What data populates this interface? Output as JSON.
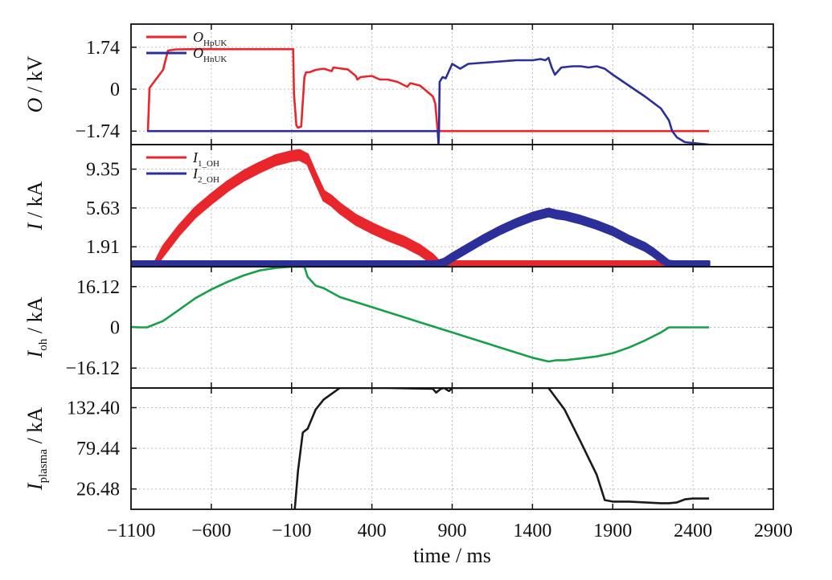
{
  "chart_data": {
    "type": "line",
    "xlabel": "time / ms",
    "xlim": [
      -1100,
      2900
    ],
    "xticks": [
      "-1100",
      "-600",
      "-100",
      "400",
      "900",
      "1400",
      "1900",
      "2400",
      "2900"
    ],
    "grid": true,
    "panels": [
      {
        "ylabel_main": "O",
        "ylabel_unit": " / kV",
        "ylim": [
          -2.3,
          2.7
        ],
        "yticks": [
          {
            "v": 1.74,
            "label": "1.74"
          },
          {
            "v": 0,
            "label": "0"
          },
          {
            "v": -1.74,
            "label": "−1.74"
          }
        ],
        "legend_position": "top-left",
        "series": [
          {
            "name": "O_HpUK",
            "name_main": "O",
            "name_sub": "HpUK",
            "color": "#e8262b",
            "points": [
              [
                -1000,
                -1.74
              ],
              [
                -995,
                -1.74
              ],
              [
                -985,
                0.05
              ],
              [
                -900,
                0.8
              ],
              [
                -870,
                1.6
              ],
              [
                -820,
                1.65
              ],
              [
                -700,
                1.66
              ],
              [
                -500,
                1.66
              ],
              [
                -300,
                1.66
              ],
              [
                -90,
                1.66
              ],
              [
                -85,
                -0.2
              ],
              [
                -70,
                -1.5
              ],
              [
                -60,
                -1.6
              ],
              [
                -40,
                -1.55
              ],
              [
                -20,
                0.5
              ],
              [
                -10,
                0.7
              ],
              [
                10,
                0.7
              ],
              [
                50,
                0.8
              ],
              [
                100,
                0.85
              ],
              [
                150,
                0.75
              ],
              [
                160,
                0.9
              ],
              [
                250,
                0.82
              ],
              [
                300,
                0.55
              ],
              [
                310,
                0.4
              ],
              [
                330,
                0.5
              ],
              [
                400,
                0.55
              ],
              [
                450,
                0.4
              ],
              [
                500,
                0.4
              ],
              [
                560,
                0.3
              ],
              [
                620,
                0.1
              ],
              [
                640,
                0.25
              ],
              [
                700,
                0.15
              ],
              [
                780,
                -0.3
              ],
              [
                795,
                -0.6
              ],
              [
                810,
                -1.74
              ],
              [
                815,
                -1.74
              ],
              [
                830,
                -1.74
              ],
              [
                1400,
                -1.74
              ],
              [
                2000,
                -1.74
              ],
              [
                2500,
                -1.74
              ]
            ]
          },
          {
            "name": "O_HnUK",
            "name_main": "O",
            "name_sub": "HnUK",
            "color": "#2c2f9a",
            "points": [
              [
                -1000,
                -1.74
              ],
              [
                -500,
                -1.74
              ],
              [
                0,
                -1.74
              ],
              [
                500,
                -1.74
              ],
              [
                810,
                -1.74
              ],
              [
                815,
                -2.3
              ],
              [
                818,
                -1.74
              ],
              [
                822,
                0.3
              ],
              [
                840,
                0.5
              ],
              [
                860,
                0.45
              ],
              [
                900,
                1.05
              ],
              [
                950,
                0.85
              ],
              [
                1000,
                1.05
              ],
              [
                1100,
                1.1
              ],
              [
                1200,
                1.15
              ],
              [
                1300,
                1.2
              ],
              [
                1400,
                1.2
              ],
              [
                1450,
                1.25
              ],
              [
                1480,
                1.2
              ],
              [
                1500,
                1.3
              ],
              [
                1520,
                0.9
              ],
              [
                1540,
                0.6
              ],
              [
                1580,
                0.9
              ],
              [
                1650,
                0.95
              ],
              [
                1700,
                0.95
              ],
              [
                1750,
                0.9
              ],
              [
                1800,
                0.95
              ],
              [
                1850,
                0.85
              ],
              [
                1900,
                0.6
              ],
              [
                2000,
                0.15
              ],
              [
                2100,
                -0.3
              ],
              [
                2200,
                -0.8
              ],
              [
                2250,
                -1.3
              ],
              [
                2270,
                -1.74
              ],
              [
                2300,
                -2.0
              ],
              [
                2350,
                -2.2
              ],
              [
                2500,
                -2.3
              ]
            ]
          }
        ]
      },
      {
        "ylabel_main": "I",
        "ylabel_unit": " / kA",
        "ylim": [
          0,
          11.7
        ],
        "yticks": [
          {
            "v": 9.35,
            "label": "9.35"
          },
          {
            "v": 5.63,
            "label": "5.63"
          },
          {
            "v": 1.91,
            "label": "1.91"
          }
        ],
        "legend_position": "top-left",
        "series": [
          {
            "name": "I_1_OH",
            "name_main": "I",
            "name_sub": "1_OH",
            "color": "#e8262b",
            "band": 0.9,
            "points": [
              [
                -1100,
                0
              ],
              [
                -950,
                0
              ],
              [
                -900,
                1.5
              ],
              [
                -800,
                3.5
              ],
              [
                -700,
                5.2
              ],
              [
                -600,
                6.5
              ],
              [
                -500,
                7.7
              ],
              [
                -400,
                8.7
              ],
              [
                -300,
                9.5
              ],
              [
                -200,
                10.2
              ],
              [
                -100,
                10.6
              ],
              [
                -50,
                10.7
              ],
              [
                0,
                10.3
              ],
              [
                50,
                8.5
              ],
              [
                100,
                6.8
              ],
              [
                150,
                6.3
              ],
              [
                200,
                5.6
              ],
              [
                300,
                4.5
              ],
              [
                400,
                3.7
              ],
              [
                500,
                3.0
              ],
              [
                600,
                2.4
              ],
              [
                700,
                1.6
              ],
              [
                780,
                0.7
              ],
              [
                820,
                0.05
              ],
              [
                1000,
                0.05
              ],
              [
                1500,
                0.05
              ],
              [
                2000,
                0.05
              ],
              [
                2500,
                0.05
              ]
            ]
          },
          {
            "name": "I_2_OH",
            "name_main": "I",
            "name_sub": "2_OH",
            "color": "#2c2f9a",
            "band": 0.7,
            "points": [
              [
                -1100,
                0.15
              ],
              [
                0,
                0.15
              ],
              [
                500,
                0.15
              ],
              [
                800,
                0.15
              ],
              [
                850,
                0.4
              ],
              [
                900,
                0.9
              ],
              [
                1000,
                1.8
              ],
              [
                1100,
                2.7
              ],
              [
                1200,
                3.5
              ],
              [
                1300,
                4.2
              ],
              [
                1400,
                4.8
              ],
              [
                1500,
                5.2
              ],
              [
                1550,
                5.0
              ],
              [
                1600,
                4.9
              ],
              [
                1700,
                4.5
              ],
              [
                1800,
                4.0
              ],
              [
                1900,
                3.4
              ],
              [
                2000,
                2.6
              ],
              [
                2100,
                1.9
              ],
              [
                2150,
                1.4
              ],
              [
                2200,
                0.8
              ],
              [
                2250,
                0.2
              ],
              [
                2280,
                0.15
              ],
              [
                2500,
                0.15
              ]
            ]
          }
        ]
      },
      {
        "ylabel_main": "I",
        "ylabel_sub": "oh",
        "ylabel_unit": " / kA",
        "ylim": [
          -24,
          24
        ],
        "yticks": [
          {
            "v": 16.12,
            "label": "16.12"
          },
          {
            "v": 0,
            "label": "0"
          },
          {
            "v": -16.12,
            "label": "−16.12"
          }
        ],
        "series": [
          {
            "color": "#17a04a",
            "points": [
              [
                -1100,
                0.2
              ],
              [
                -1050,
                0
              ],
              [
                -1000,
                0
              ],
              [
                -900,
                2.5
              ],
              [
                -800,
                7
              ],
              [
                -700,
                11.5
              ],
              [
                -600,
                15
              ],
              [
                -500,
                18
              ],
              [
                -400,
                20.5
              ],
              [
                -300,
                22.5
              ],
              [
                -200,
                23.5
              ],
              [
                -100,
                24
              ],
              [
                -50,
                24
              ],
              [
                -20,
                24
              ],
              [
                0,
                20
              ],
              [
                50,
                16.5
              ],
              [
                100,
                15.5
              ],
              [
                200,
                12
              ],
              [
                300,
                10
              ],
              [
                400,
                8
              ],
              [
                500,
                6
              ],
              [
                600,
                4
              ],
              [
                700,
                2
              ],
              [
                800,
                0
              ],
              [
                900,
                -2
              ],
              [
                1000,
                -4
              ],
              [
                1100,
                -6
              ],
              [
                1200,
                -8
              ],
              [
                1300,
                -10
              ],
              [
                1400,
                -12
              ],
              [
                1500,
                -13.5
              ],
              [
                1550,
                -13
              ],
              [
                1600,
                -13
              ],
              [
                1700,
                -12.3
              ],
              [
                1800,
                -11.5
              ],
              [
                1900,
                -10.2
              ],
              [
                2000,
                -8
              ],
              [
                2100,
                -5.2
              ],
              [
                2200,
                -2
              ],
              [
                2250,
                0
              ],
              [
                2300,
                0
              ],
              [
                2500,
                0
              ]
            ]
          }
        ]
      },
      {
        "ylabel_main": "I",
        "ylabel_sub": "plasma",
        "ylabel_unit": " / kA",
        "ylim": [
          0,
          158
        ],
        "yticks": [
          {
            "v": 132.4,
            "label": "132.40"
          },
          {
            "v": 79.44,
            "label": "79.44"
          },
          {
            "v": 26.48,
            "label": "26.48"
          }
        ],
        "series": [
          {
            "color": "#1a1a1a",
            "points": [
              [
                -80,
                0
              ],
              [
                -60,
                50
              ],
              [
                -30,
                100
              ],
              [
                0,
                105
              ],
              [
                50,
                130
              ],
              [
                100,
                143
              ],
              [
                200,
                158
              ],
              [
                300,
                158
              ],
              [
                500,
                158
              ],
              [
                780,
                157
              ],
              [
                800,
                152
              ],
              [
                830,
                157
              ],
              [
                850,
                158
              ],
              [
                880,
                154
              ],
              [
                900,
                158
              ],
              [
                1000,
                158
              ],
              [
                1200,
                158
              ],
              [
                1400,
                158
              ],
              [
                1500,
                158
              ],
              [
                1600,
                130
              ],
              [
                1700,
                88
              ],
              [
                1800,
                45
              ],
              [
                1850,
                12
              ],
              [
                1900,
                10
              ],
              [
                2000,
                10
              ],
              [
                2100,
                9
              ],
              [
                2200,
                8
              ],
              [
                2250,
                8
              ],
              [
                2300,
                9
              ],
              [
                2350,
                13
              ],
              [
                2400,
                14
              ],
              [
                2500,
                14
              ]
            ]
          }
        ]
      }
    ]
  }
}
